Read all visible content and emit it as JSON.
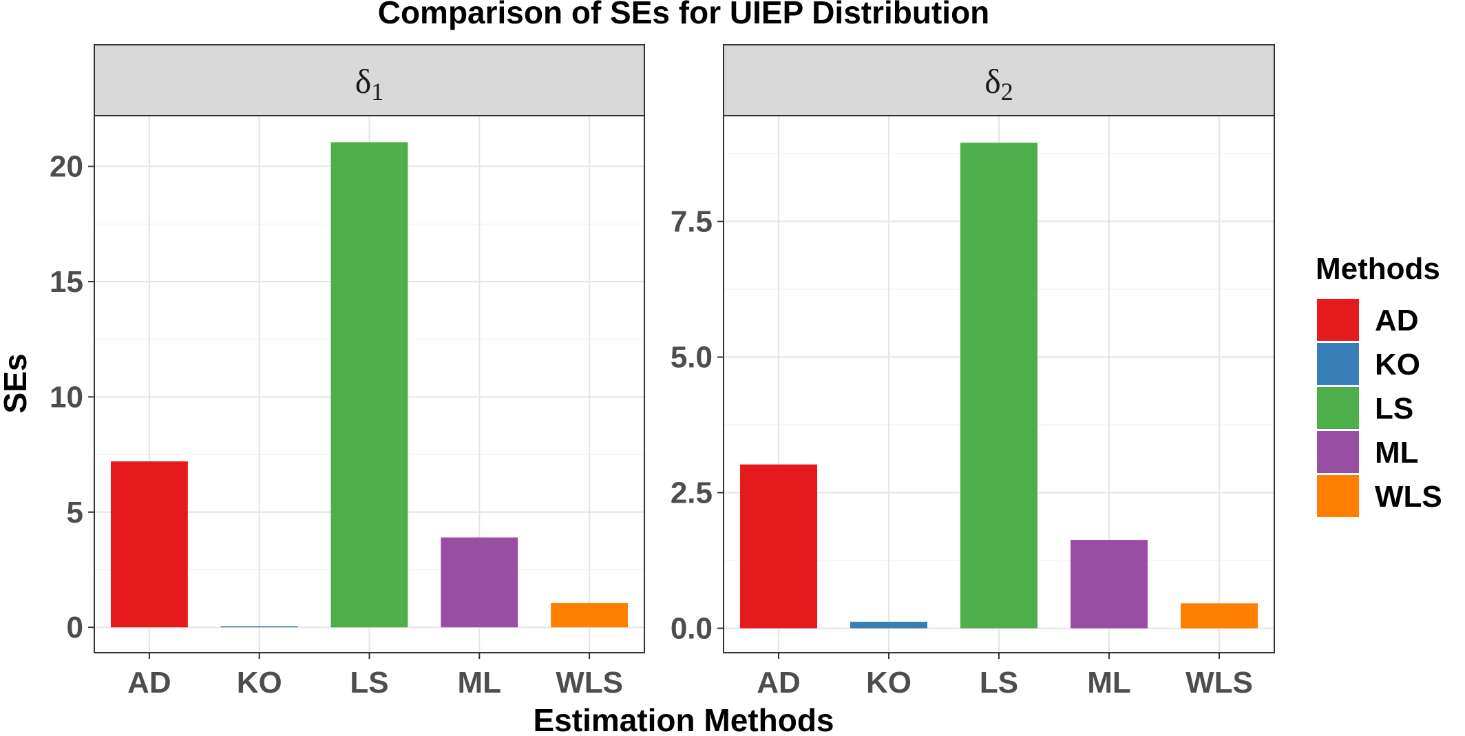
{
  "chart_data": {
    "type": "bar",
    "title": "Comparison of SEs for UIEP Distribution",
    "xlabel": "Estimation Methods",
    "ylabel": "SEs",
    "categories": [
      "AD",
      "KO",
      "LS",
      "ML",
      "WLS"
    ],
    "colors": {
      "AD": "#E41A1C",
      "KO": "#377EB8",
      "LS": "#4DAF4A",
      "ML": "#984EA3",
      "WLS": "#FF7F00"
    },
    "facets": [
      {
        "strip": {
          "symbol": "δ",
          "subscript": "1"
        },
        "values": [
          7.2,
          0.05,
          21.05,
          3.9,
          1.05
        ],
        "ylim": [
          -1.1,
          22.2
        ],
        "yticks": [
          0,
          5,
          10,
          15,
          20
        ],
        "yticklabels": [
          "0",
          "5",
          "10",
          "15",
          "20"
        ]
      },
      {
        "strip": {
          "symbol": "δ",
          "subscript": "2"
        },
        "values": [
          3.02,
          0.12,
          8.95,
          1.63,
          0.46
        ],
        "ylim": [
          -0.45,
          9.45
        ],
        "yticks": [
          0,
          2.5,
          5,
          7.5
        ],
        "yticklabels": [
          "0.0",
          "2.5",
          "5.0",
          "7.5"
        ]
      }
    ],
    "legend": {
      "title": "Methods",
      "position": "right",
      "entries": [
        "AD",
        "KO",
        "LS",
        "ML",
        "WLS"
      ]
    },
    "grid": true
  }
}
